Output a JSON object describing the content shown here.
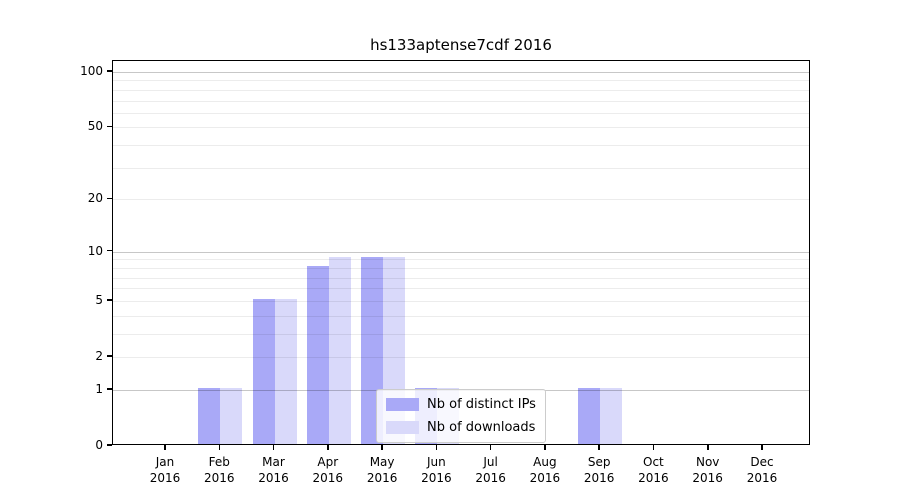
{
  "chart_data": {
    "type": "bar",
    "title": "hs133aptense7cdf 2016",
    "categories": [
      "Jan",
      "Feb",
      "Mar",
      "Apr",
      "May",
      "Jun",
      "Jul",
      "Aug",
      "Sep",
      "Oct",
      "Nov",
      "Dec"
    ],
    "category_sublabel": "2016",
    "series": [
      {
        "name": "Nb of distinct IPs",
        "color": "#a9a9f7",
        "values": [
          0,
          1,
          5,
          8,
          9,
          1,
          0,
          0,
          1,
          0,
          0,
          0
        ]
      },
      {
        "name": "Nb of downloads",
        "color": "#d9d9fa",
        "values": [
          0,
          1,
          5,
          9,
          9,
          1,
          0,
          0,
          1,
          0,
          0,
          0
        ]
      }
    ],
    "yscale": "log1p",
    "ylim": [
      0,
      115
    ],
    "yticks": [
      0,
      1,
      2,
      5,
      10,
      20,
      50,
      100
    ],
    "minor_gridlines": [
      2,
      3,
      4,
      5,
      6,
      7,
      8,
      9,
      20,
      30,
      40,
      50,
      60,
      70,
      80,
      90
    ],
    "major_gridlines": [
      1,
      10,
      100
    ],
    "grid": true,
    "legend_position": "lower center",
    "colors": {
      "background": "#ffffff",
      "spine": "#000000",
      "minor_grid": "#ececec",
      "major_grid": "#c7c7c7"
    }
  }
}
